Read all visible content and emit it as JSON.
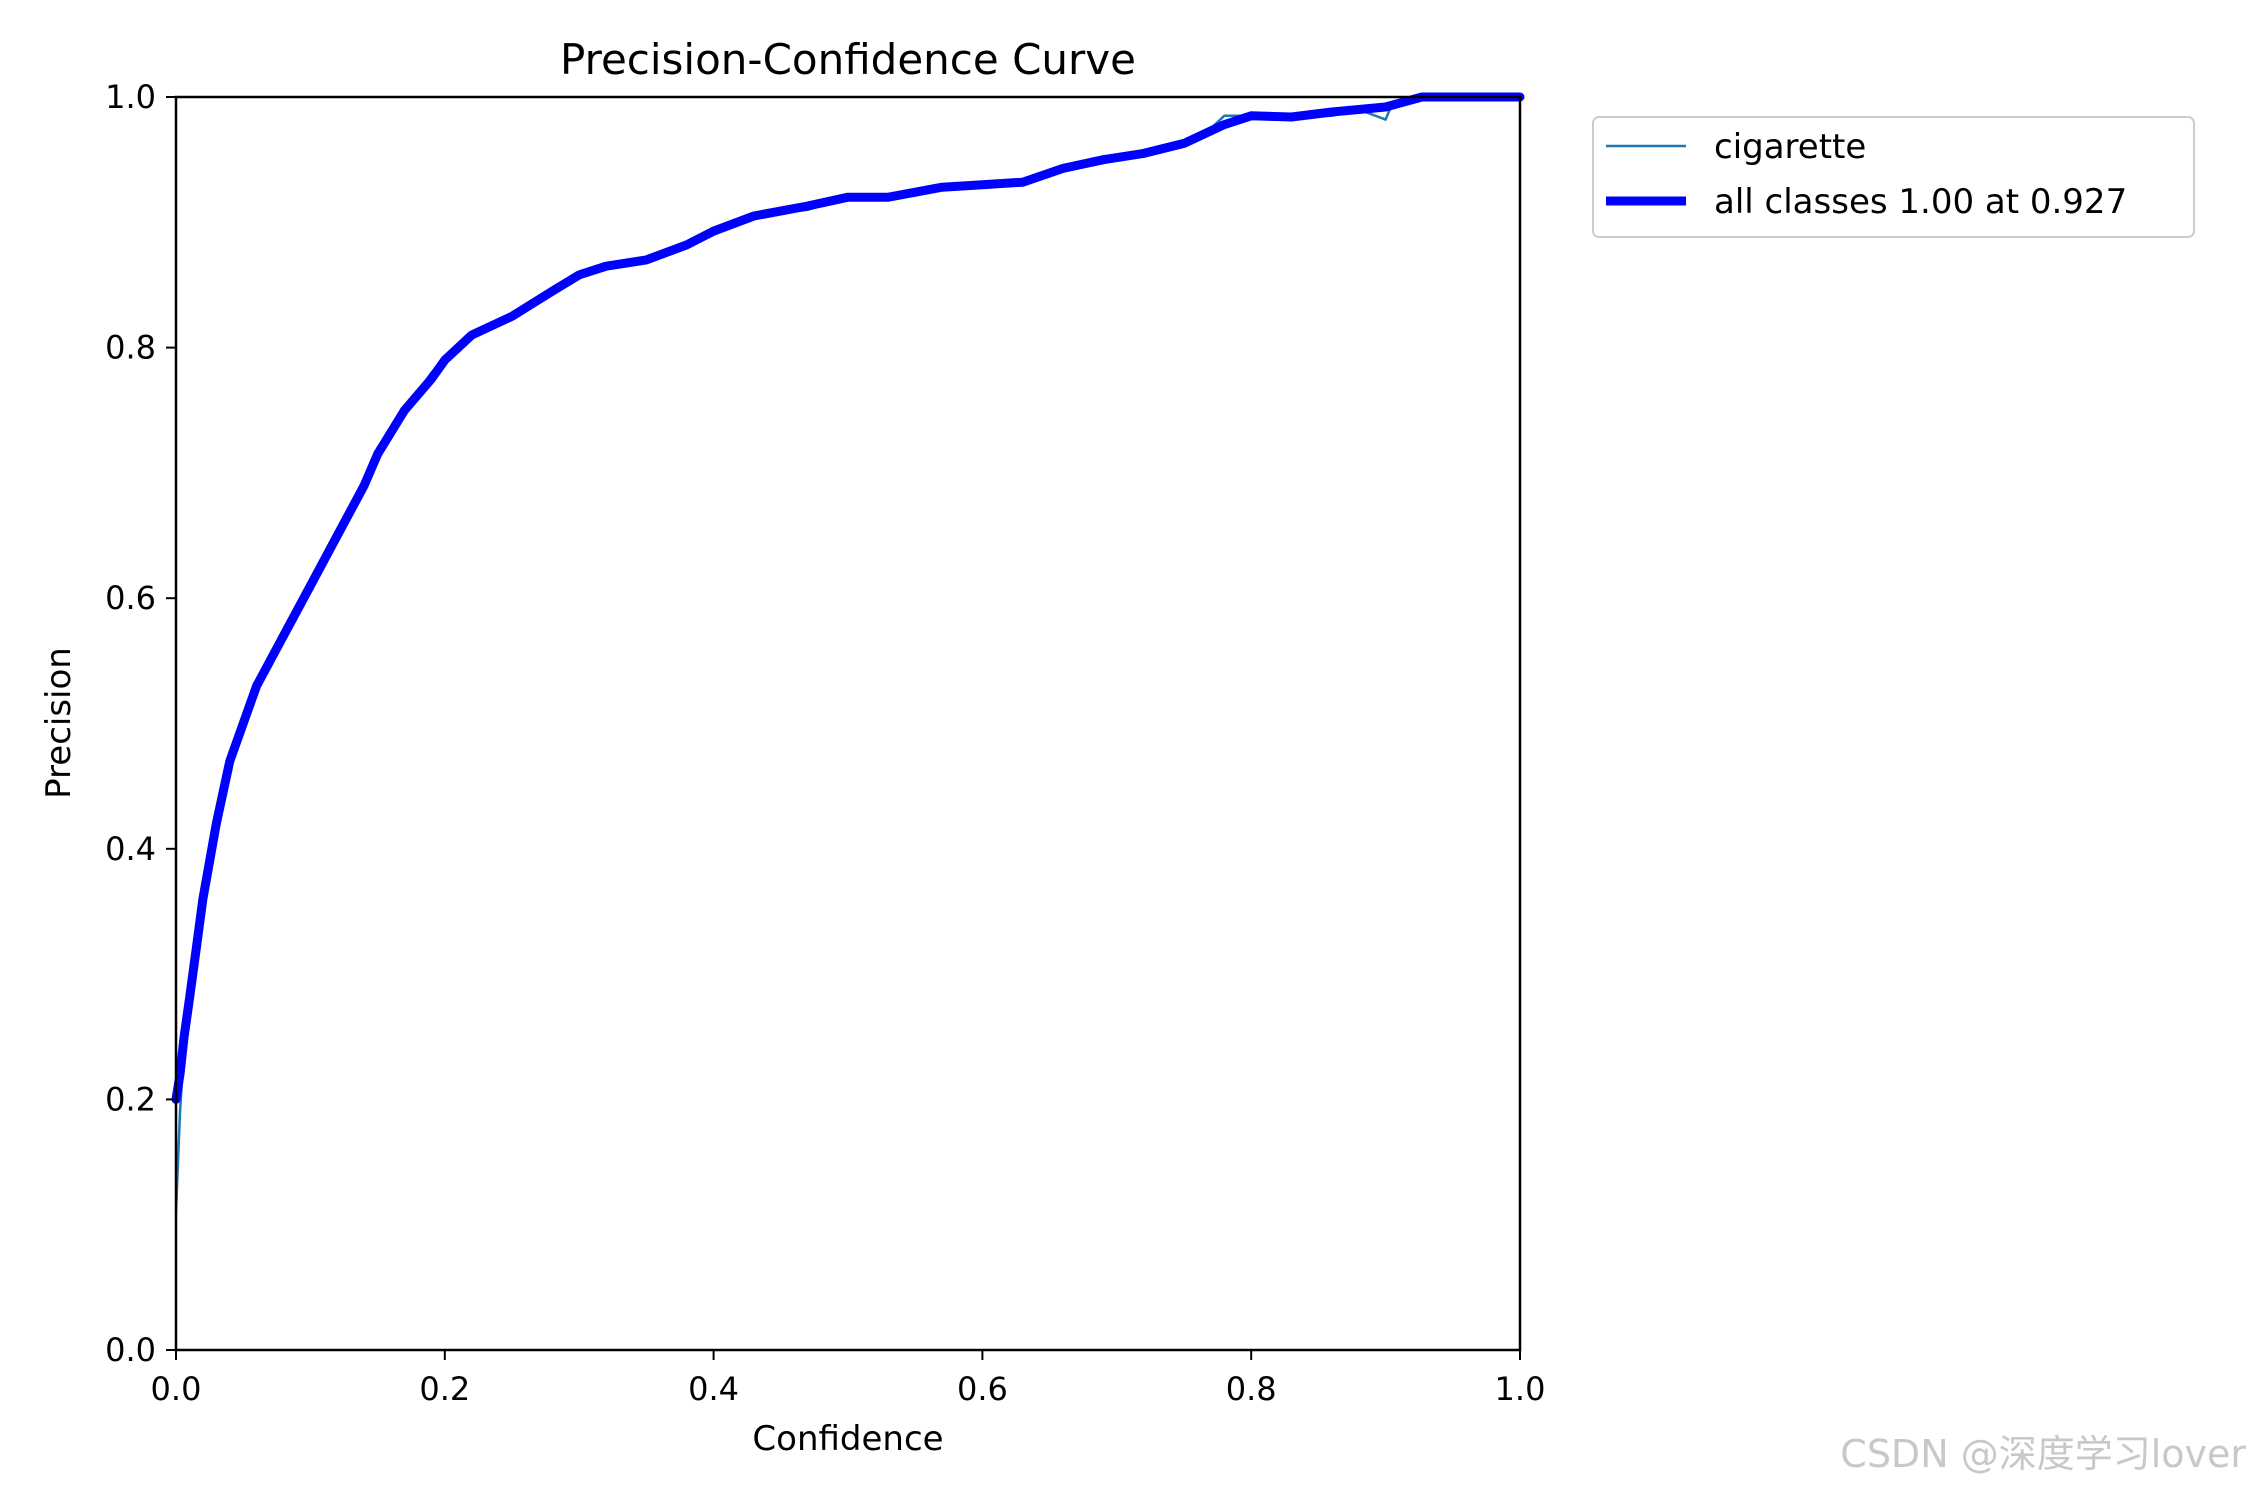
{
  "chart_data": {
    "type": "line",
    "title": "Precision-Confidence Curve",
    "xlabel": "Confidence",
    "ylabel": "Precision",
    "xlim": [
      0.0,
      1.0
    ],
    "ylim": [
      0.0,
      1.0
    ],
    "xticks": [
      "0.0",
      "0.2",
      "0.4",
      "0.6",
      "0.8",
      "1.0"
    ],
    "yticks": [
      "0.0",
      "0.2",
      "0.4",
      "0.6",
      "0.8",
      "1.0"
    ],
    "grid": false,
    "legend_position": "outside-top-right",
    "series": [
      {
        "name": "cigarette",
        "color": "#1f77b4",
        "x": [
          0.0,
          0.003,
          0.006,
          0.01,
          0.015,
          0.02,
          0.025,
          0.03,
          0.04,
          0.05,
          0.06,
          0.08,
          0.1,
          0.12,
          0.14,
          0.15,
          0.17,
          0.19,
          0.2,
          0.22,
          0.25,
          0.26,
          0.28,
          0.3,
          0.32,
          0.35,
          0.38,
          0.4,
          0.41,
          0.43,
          0.47,
          0.5,
          0.53,
          0.57,
          0.6,
          0.63,
          0.66,
          0.69,
          0.72,
          0.735,
          0.75,
          0.765,
          0.78,
          0.8,
          0.83,
          0.86,
          0.88,
          0.9,
          0.905,
          0.93,
          0.96,
          1.0
        ],
        "y": [
          0.11,
          0.19,
          0.24,
          0.28,
          0.33,
          0.37,
          0.4,
          0.42,
          0.47,
          0.5,
          0.53,
          0.57,
          0.61,
          0.65,
          0.69,
          0.72,
          0.75,
          0.78,
          0.79,
          0.81,
          0.825,
          0.83,
          0.845,
          0.86,
          0.865,
          0.87,
          0.88,
          0.89,
          0.895,
          0.905,
          0.91,
          0.92,
          0.92,
          0.93,
          0.93,
          0.93,
          0.945,
          0.95,
          0.955,
          0.958,
          0.965,
          0.97,
          0.985,
          0.985,
          0.984,
          0.985,
          0.99,
          0.982,
          0.995,
          1.0,
          1.0,
          1.0
        ]
      },
      {
        "name": "all classes 1.00 at 0.927",
        "color": "#0000ff",
        "x": [
          0.0,
          0.003,
          0.006,
          0.01,
          0.015,
          0.02,
          0.025,
          0.03,
          0.04,
          0.05,
          0.06,
          0.08,
          0.1,
          0.12,
          0.14,
          0.15,
          0.17,
          0.19,
          0.2,
          0.22,
          0.25,
          0.28,
          0.3,
          0.32,
          0.35,
          0.38,
          0.4,
          0.43,
          0.47,
          0.5,
          0.53,
          0.57,
          0.6,
          0.63,
          0.66,
          0.69,
          0.72,
          0.75,
          0.78,
          0.8,
          0.83,
          0.86,
          0.88,
          0.9,
          0.927,
          0.96,
          1.0
        ],
        "y": [
          0.2,
          0.22,
          0.25,
          0.28,
          0.32,
          0.36,
          0.39,
          0.42,
          0.47,
          0.5,
          0.53,
          0.57,
          0.61,
          0.65,
          0.69,
          0.715,
          0.75,
          0.775,
          0.79,
          0.81,
          0.825,
          0.845,
          0.858,
          0.865,
          0.87,
          0.882,
          0.893,
          0.905,
          0.913,
          0.92,
          0.92,
          0.928,
          0.93,
          0.932,
          0.943,
          0.95,
          0.955,
          0.963,
          0.978,
          0.985,
          0.984,
          0.988,
          0.99,
          0.992,
          1.0,
          1.0,
          1.0
        ]
      }
    ]
  },
  "watermark": "CSDN @深度学习lover"
}
